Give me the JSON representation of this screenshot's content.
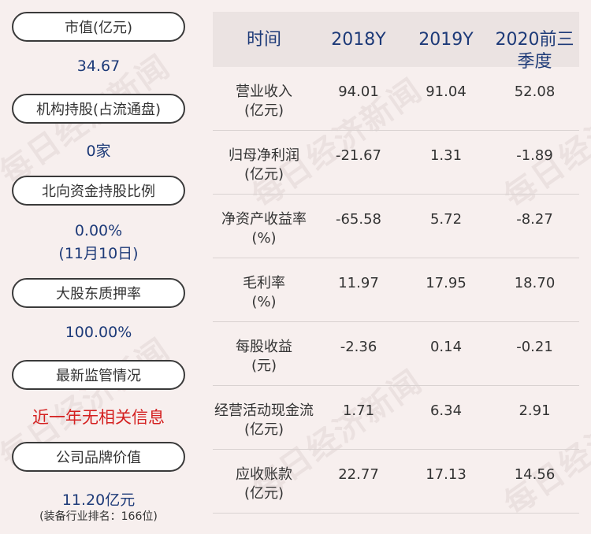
{
  "left": {
    "items": [
      {
        "label": "市值(亿元)",
        "value": "34.67"
      },
      {
        "label": "机构持股(占流通盘)",
        "value": "0家"
      },
      {
        "label": "北向资金持股比例",
        "value_line1": "0.00%",
        "value_line2": "(11月10日)"
      },
      {
        "label": "大股东质押率",
        "value": "100.00%"
      },
      {
        "label": "最新监管情况",
        "value": "近一年无相关信息"
      },
      {
        "label": "公司品牌价值",
        "value": "11.20亿元",
        "note": "(装备行业排名：166位)"
      }
    ]
  },
  "table": {
    "headers": [
      "时间",
      "2018Y",
      "2019Y",
      "2020前三\n季度"
    ],
    "rows": [
      {
        "label1": "营业收入",
        "label2": "(亿元)",
        "values": [
          "94.01",
          "91.04",
          "52.08"
        ]
      },
      {
        "label1": "归母净利润",
        "label2": "(亿元)",
        "values": [
          "-21.67",
          "1.31",
          "-1.89"
        ]
      },
      {
        "label1": "净资产收益率",
        "label2": "(%)",
        "values": [
          "-65.58",
          "5.72",
          "-8.27"
        ]
      },
      {
        "label1": "毛利率",
        "label2": "(%)",
        "values": [
          "11.97",
          "17.95",
          "18.70"
        ]
      },
      {
        "label1": "每股收益",
        "label2": "(元)",
        "values": [
          "-2.36",
          "0.14",
          "-0.21"
        ]
      },
      {
        "label1": "经营活动现金流",
        "label2": "(亿元)",
        "values": [
          "1.71",
          "6.34",
          "2.91"
        ]
      },
      {
        "label1": "应收账款",
        "label2": "(亿元)",
        "values": [
          "22.77",
          "17.13",
          "14.56"
        ]
      }
    ]
  },
  "watermark": "每日经济新闻",
  "colors": {
    "background": "#f7efee",
    "header_bg": "#ebe3e2",
    "value_blue": "#1d3a78",
    "alert_red": "#d42020"
  }
}
